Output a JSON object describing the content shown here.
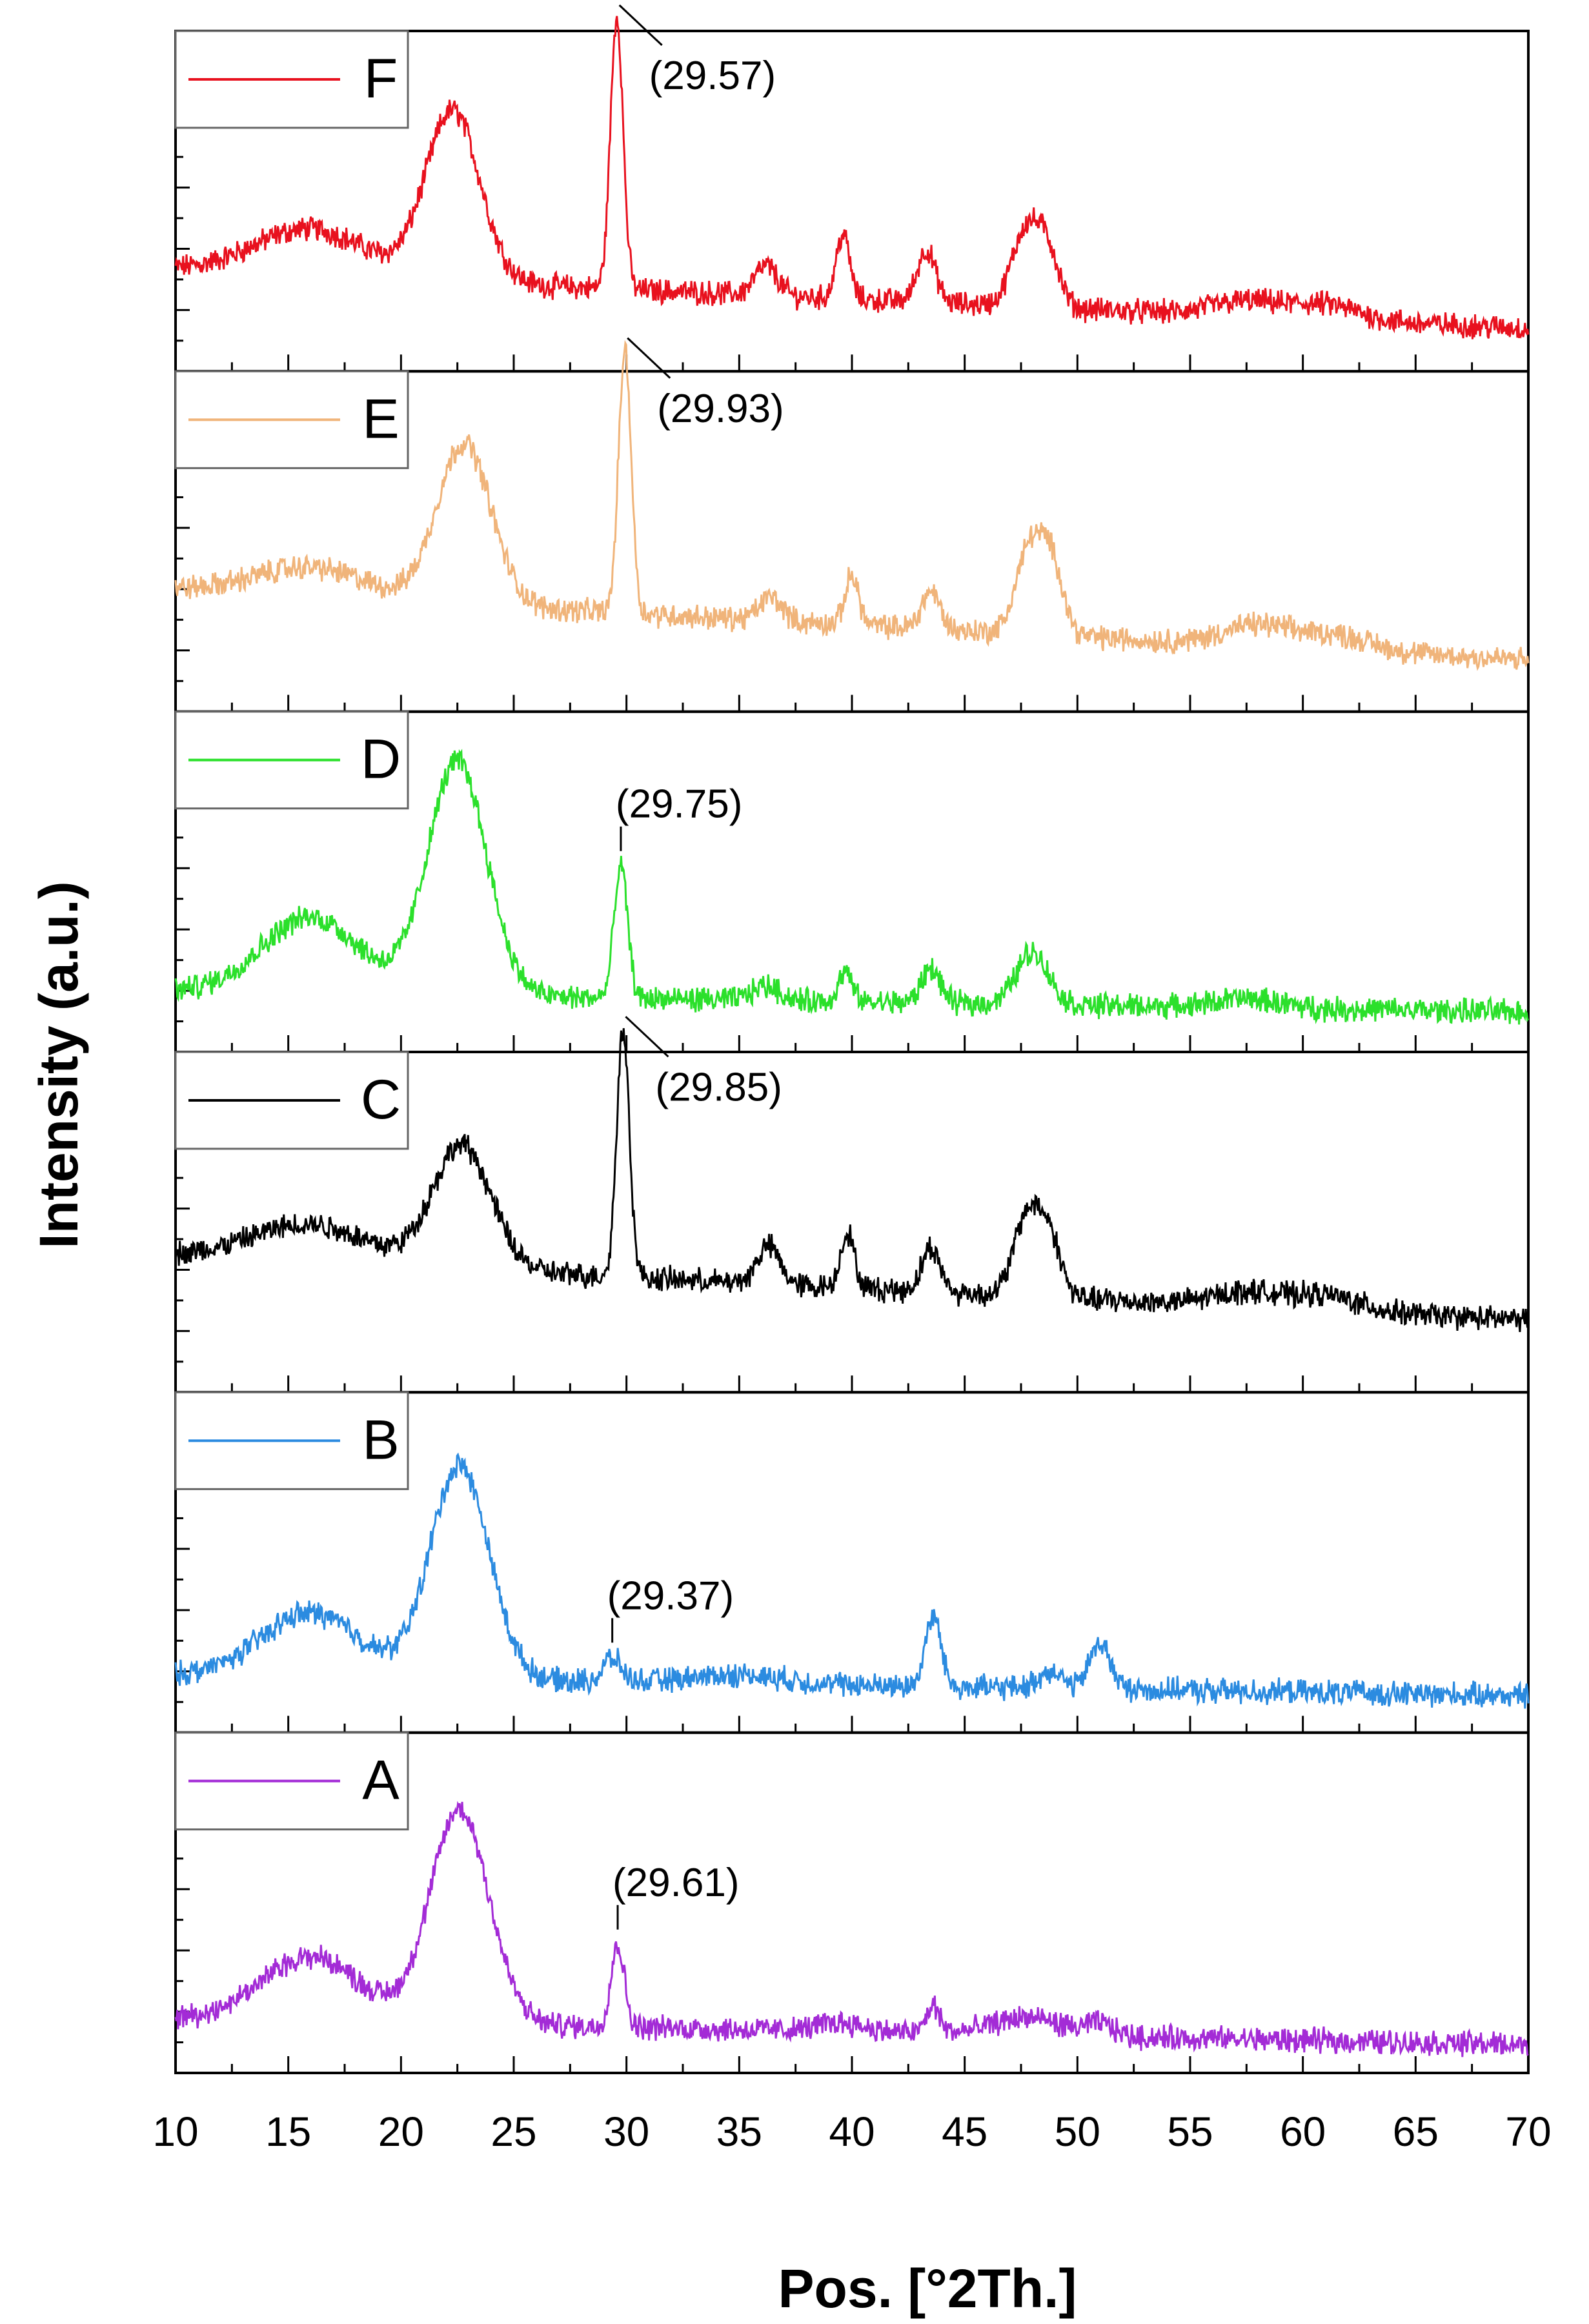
{
  "chart_data": {
    "type": "line",
    "subtype": "stacked-xrd-patterns",
    "xlabel": "Pos. [°2Th.]",
    "ylabel": "Intensity (a.u.)",
    "xlim": [
      10,
      70
    ],
    "x_ticks": [
      "10",
      "15",
      "20",
      "25",
      "30",
      "35",
      "40",
      "45",
      "50",
      "55",
      "60",
      "65",
      "70"
    ],
    "ylim": [
      0,
      1
    ],
    "grid": false,
    "legend_position": "top-left of each panel",
    "series": [
      {
        "name": "F",
        "color": "#e8111e",
        "annotation": "(29.57)",
        "peak_x": 29.57,
        "annotation_style": "leader-right",
        "baseline_start": 0.3,
        "baseline_end": 0.1,
        "peaks": [
          [
            16,
            0.16,
            2.5
          ],
          [
            22.3,
            0.58,
            1.2
          ],
          [
            29.57,
            0.93,
            0.28
          ],
          [
            36.2,
            0.1,
            0.5
          ],
          [
            39.6,
            0.22,
            0.3
          ],
          [
            43.3,
            0.18,
            0.4
          ],
          [
            47.7,
            0.26,
            0.6
          ],
          [
            48.7,
            0.18,
            0.5
          ],
          [
            57.5,
            0.05,
            1.5
          ],
          [
            61,
            0.05,
            1.5
          ]
        ]
      },
      {
        "name": "E",
        "color": "#f0b47a",
        "annotation": "(29.93)",
        "peak_x": 29.93,
        "annotation_style": "leader-right",
        "baseline_start": 0.37,
        "baseline_end": 0.13,
        "peaks": [
          [
            16,
            0.1,
            2.5
          ],
          [
            22.8,
            0.55,
            1.2
          ],
          [
            29.93,
            0.9,
            0.28
          ],
          [
            36.4,
            0.08,
            0.5
          ],
          [
            40.0,
            0.17,
            0.3
          ],
          [
            43.5,
            0.13,
            0.4
          ],
          [
            47.9,
            0.3,
            0.6
          ],
          [
            48.9,
            0.22,
            0.5
          ],
          [
            58,
            0.07,
            1.5
          ],
          [
            61.5,
            0.05,
            1.5
          ]
        ]
      },
      {
        "name": "D",
        "color": "#2be02b",
        "annotation": "(29.75)",
        "peak_x": 29.75,
        "annotation_style": "tick-above",
        "baseline_start": 0.16,
        "baseline_end": 0.09,
        "peaks": [
          [
            16,
            0.26,
            2.2
          ],
          [
            22.5,
            0.8,
            1.3
          ],
          [
            29.75,
            0.45,
            0.3
          ],
          [
            36.2,
            0.05,
            0.6
          ],
          [
            39.7,
            0.1,
            0.3
          ],
          [
            43.5,
            0.12,
            0.4
          ],
          [
            48,
            0.18,
            0.7
          ],
          [
            57.5,
            0.03,
            1.5
          ]
        ]
      },
      {
        "name": "C",
        "color": "#000000",
        "annotation": "(29.85)",
        "peak_x": 29.85,
        "annotation_style": "leader-right",
        "baseline_start": 0.42,
        "baseline_end": 0.2,
        "peaks": [
          [
            16,
            0.13,
            2.6
          ],
          [
            22.7,
            0.42,
            1.3
          ],
          [
            29.85,
            0.85,
            0.28
          ],
          [
            36.3,
            0.13,
            0.5
          ],
          [
            39.8,
            0.19,
            0.3
          ],
          [
            43.5,
            0.15,
            0.4
          ],
          [
            47.8,
            0.28,
            0.6
          ],
          [
            48.8,
            0.18,
            0.5
          ],
          [
            57.5,
            0.05,
            1.5
          ],
          [
            61,
            0.05,
            1.5
          ]
        ]
      },
      {
        "name": "B",
        "color": "#2b8be0",
        "annotation": "(29.37)",
        "peak_x": 29.37,
        "annotation_style": "tick-above",
        "baseline_start": 0.15,
        "baseline_end": 0.08,
        "peaks": [
          [
            16,
            0.22,
            2.2
          ],
          [
            22.6,
            0.73,
            1.3
          ],
          [
            29.37,
            0.08,
            0.4
          ],
          [
            35,
            0.03,
            2
          ],
          [
            43.6,
            0.24,
            0.35
          ],
          [
            48.8,
            0.06,
            0.5
          ],
          [
            51,
            0.16,
            0.45
          ]
        ]
      },
      {
        "name": "A",
        "color": "#a32bd6",
        "annotation": "(29.61)",
        "peak_x": 29.61,
        "annotation_style": "tick-above",
        "baseline_start": 0.14,
        "baseline_end": 0.05,
        "peaks": [
          [
            16,
            0.22,
            2.2
          ],
          [
            22.6,
            0.73,
            1.3
          ],
          [
            29.61,
            0.28,
            0.3
          ],
          [
            39.5,
            0.03,
            1
          ],
          [
            43.6,
            0.09,
            0.3
          ],
          [
            47.8,
            0.06,
            1.5
          ],
          [
            51,
            0.04,
            0.6
          ]
        ]
      }
    ]
  }
}
